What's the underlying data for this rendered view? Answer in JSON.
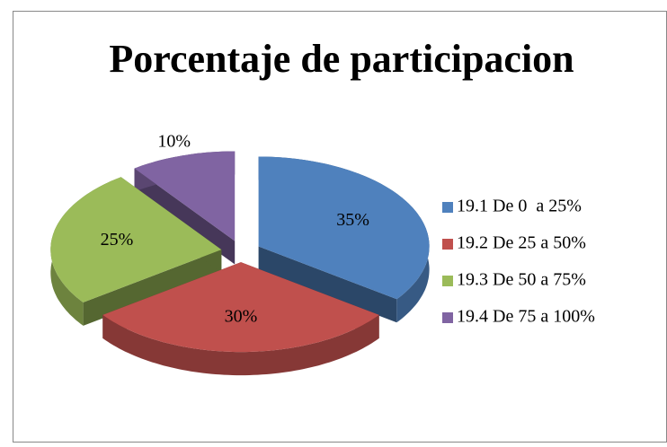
{
  "chart_data": {
    "type": "pie3d",
    "title": "Porcentaje de participacion",
    "categories": [
      "19.1 De 0  a 25%",
      "19.2 De 25 a 50%",
      "19.3 De 50 a 75%",
      "19.4 De 75 a 100%"
    ],
    "values": [
      35,
      30,
      25,
      10
    ],
    "value_labels": [
      "35%",
      "30%",
      "25%",
      "10%"
    ],
    "colors": [
      "#4f81bd",
      "#c0504d",
      "#9bbb59",
      "#8064a2"
    ],
    "legend": "right"
  }
}
